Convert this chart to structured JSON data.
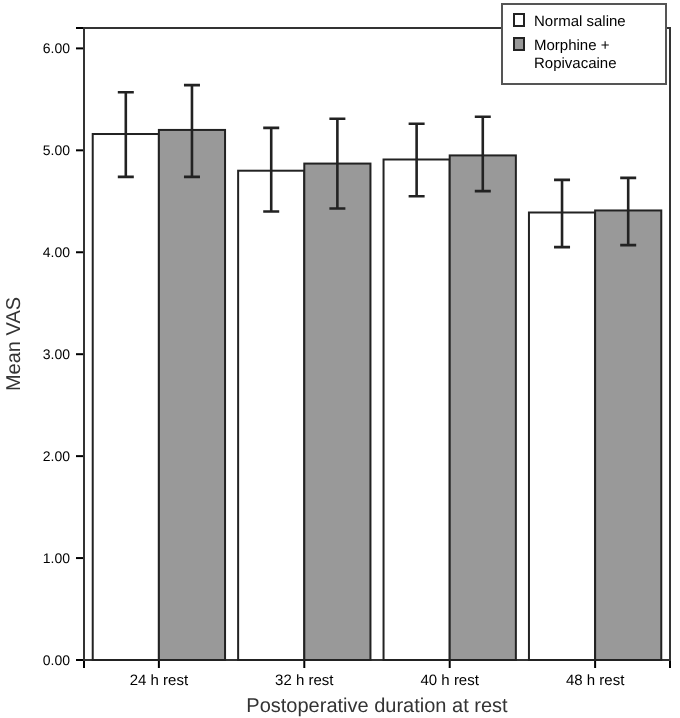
{
  "chart_data": {
    "type": "bar",
    "xlabel": "Postoperative duration at rest",
    "ylabel": "Mean VAS",
    "categories": [
      "24 h rest",
      "32 h rest",
      "40 h rest",
      "48 h rest"
    ],
    "series": [
      {
        "name": "Normal saline",
        "color": "#ffffff",
        "values": [
          5.16,
          4.8,
          4.91,
          4.39
        ],
        "errors": [
          [
            4.74,
            5.57
          ],
          [
            4.4,
            5.22
          ],
          [
            4.55,
            5.26
          ],
          [
            4.05,
            4.71
          ]
        ]
      },
      {
        "name": "Morphine + Ropivacaine",
        "color": "#999999",
        "values": [
          5.2,
          4.87,
          4.95,
          4.41
        ],
        "errors": [
          [
            4.74,
            5.64
          ],
          [
            4.43,
            5.31
          ],
          [
            4.6,
            5.33
          ],
          [
            4.07,
            4.73
          ]
        ]
      }
    ],
    "ylim": [
      0,
      6.2
    ],
    "yticks": [
      {
        "value": 0,
        "label": "0.00"
      },
      {
        "value": 1,
        "label": "1.00"
      },
      {
        "value": 2,
        "label": "2.00"
      },
      {
        "value": 3,
        "label": "3.00"
      },
      {
        "value": 4,
        "label": "4.00"
      },
      {
        "value": 5,
        "label": "5.00"
      },
      {
        "value": 6,
        "label": "6.00"
      }
    ],
    "legend": "top right",
    "grid": false
  }
}
